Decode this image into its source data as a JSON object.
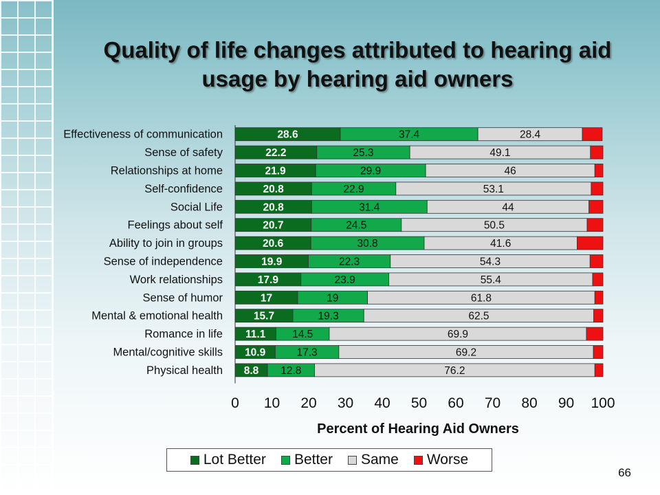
{
  "title": "Quality of life changes attributed to hearing aid usage by hearing aid owners",
  "page_number": "66",
  "colors": {
    "lot_better": "#0b6b1f",
    "better": "#12a94a",
    "same": "#d9d9d9",
    "worse": "#ee1111"
  },
  "chart_data": {
    "type": "bar",
    "orientation": "horizontal",
    "stacked": true,
    "title": "Quality of life changes attributed to hearing aid usage by hearing aid owners",
    "xlabel": "Percent of Hearing Aid Owners",
    "ylabel": "",
    "xlim": [
      0,
      100
    ],
    "xticks": [
      0,
      10,
      20,
      30,
      40,
      50,
      60,
      70,
      80,
      90,
      100
    ],
    "categories": [
      "Effectiveness of communication",
      "Sense of safety",
      "Relationships at home",
      "Self-confidence",
      "Social Life",
      "Feelings about self",
      "Ability to join in groups",
      "Sense of independence",
      "Work relationships",
      "Sense of humor",
      "Mental & emotional health",
      "Romance in life",
      "Mental/cognitive skills",
      "Physical health"
    ],
    "series": [
      {
        "name": "Lot Better",
        "color": "#0b6b1f",
        "values": [
          28.6,
          22.2,
          21.9,
          20.8,
          20.8,
          20.7,
          20.6,
          19.9,
          17.9,
          17,
          15.7,
          11.1,
          10.9,
          8.8
        ]
      },
      {
        "name": "Better",
        "color": "#12a94a",
        "values": [
          37.4,
          25.3,
          29.9,
          22.9,
          31.4,
          24.5,
          30.8,
          22.3,
          23.9,
          19,
          19.3,
          14.5,
          17.3,
          12.8
        ]
      },
      {
        "name": "Same",
        "color": "#d9d9d9",
        "values": [
          28.4,
          49.1,
          46,
          53.1,
          44,
          50.5,
          41.6,
          54.3,
          55.4,
          61.8,
          62.5,
          69.9,
          69.2,
          76.2
        ]
      },
      {
        "name": "Worse",
        "color": "#ee1111",
        "values": [
          5.4,
          3.4,
          2.2,
          3.2,
          3.8,
          4.3,
          7,
          3.5,
          2.8,
          2.2,
          2.5,
          4.5,
          2.6,
          2.2
        ]
      }
    ],
    "data_labels_shown_for": [
      "Lot Better",
      "Better",
      "Same"
    ],
    "legend": {
      "position": "bottom",
      "entries": [
        "Lot Better",
        "Better",
        "Same",
        "Worse"
      ]
    },
    "grid": false
  }
}
